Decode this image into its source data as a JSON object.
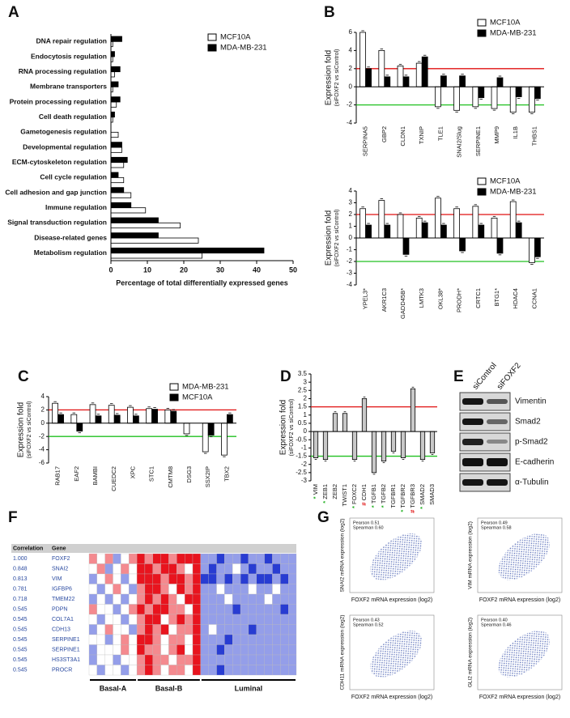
{
  "chart_data": [
    {
      "panel": "A",
      "type": "hbar",
      "categories": [
        "DNA repair regulation",
        "Endocytosis regulation",
        "RNA processing regulation",
        "Membrane transporters",
        "Protein processing regulation",
        "Cell death regulation",
        "Gametogenesis regulation",
        "Developmental regulation",
        "ECM-cytoskeleton regulation",
        "Cell cycle regulation",
        "Cell adhesion and gap junction",
        "Immune regulation",
        "Signal transduction regulation",
        "Disease-related genes",
        "Metabolism regulation"
      ],
      "series": [
        {
          "name": "MCF10A",
          "color": "#ffffff",
          "values": [
            0.5,
            0.5,
            1,
            0.5,
            1.5,
            0.5,
            2,
            3,
            3.5,
            3.5,
            5.5,
            9.5,
            19,
            24,
            25
          ]
        },
        {
          "name": "MDA-MB-231",
          "color": "#000000",
          "values": [
            3,
            1,
            2.5,
            2,
            2.5,
            1,
            0,
            3,
            4.5,
            2,
            3.5,
            5.5,
            13,
            13,
            42
          ]
        }
      ],
      "xlim": [
        0,
        50
      ],
      "xticks": [
        0,
        10,
        20,
        30,
        40,
        50
      ],
      "xlabel": "Percentage of total differentially expressed genes",
      "legend": "upper right"
    },
    {
      "panel": "B",
      "type": "bar",
      "categories": [
        "SERPINA5",
        "GBP2",
        "CLDN1",
        "TXNIP",
        "TLE1",
        "SNAI2/Slug",
        "SERPINE1",
        "MMP9",
        "IL1B",
        "THBS1"
      ],
      "series": [
        {
          "name": "MCF10A",
          "color": "#ffffff",
          "values": [
            6,
            4,
            2.3,
            2.6,
            -2.2,
            -2.6,
            -2.2,
            -2.4,
            -2.8,
            -2.8
          ]
        },
        {
          "name": "MDA-MB-231",
          "color": "#000000",
          "values": [
            2,
            1.1,
            1.1,
            3.3,
            1.2,
            1.2,
            -1.2,
            1,
            -1.1,
            -1.3
          ]
        }
      ],
      "ylim": [
        -4,
        6
      ],
      "yticks": [
        -4,
        -2,
        0,
        2,
        4,
        6
      ],
      "ylabel": "Expression fold",
      "ylabel2": "(siFOXF2 vs siControl)",
      "hlines": [
        {
          "value": 2,
          "color": "#e01010"
        },
        {
          "value": -2,
          "color": "#20c020"
        }
      ],
      "legend": "upper right"
    },
    {
      "panel": null,
      "type": "bar",
      "categories": [
        "YPEL3*",
        "AKR1C3",
        "GADD45B*",
        "LMTK3",
        "OKL38*",
        "PRODH*",
        "CRTC1",
        "BTG1*",
        "HDAC4",
        "CCNA1"
      ],
      "series": [
        {
          "name": "MCF10A",
          "color": "#ffffff",
          "values": [
            2.5,
            3.2,
            2,
            1.7,
            3.4,
            2.5,
            2.7,
            1.7,
            3.1,
            -2.1
          ]
        },
        {
          "name": "MDA-MB-231",
          "color": "#000000",
          "values": [
            1.1,
            1.1,
            -1.4,
            1.3,
            1.1,
            -1.1,
            1.1,
            -1.3,
            1.3,
            -1.6
          ]
        }
      ],
      "ylim": [
        -4,
        4
      ],
      "yticks": [
        -4,
        -3,
        -2,
        -1,
        0,
        1,
        2,
        3,
        4
      ],
      "ylabel": "Expression fold",
      "ylabel2": "(siFOXF2 vs siControl)",
      "hlines": [
        {
          "value": 2,
          "color": "#e01010"
        },
        {
          "value": -2,
          "color": "#20c020"
        }
      ],
      "legend": "upper right"
    },
    {
      "panel": "C",
      "type": "bar",
      "categories": [
        "RAB17",
        "EAF2",
        "BAMBI",
        "CUEDC2",
        "XPC",
        "STC1",
        "CMTM8",
        "DSG3",
        "SSX2IP",
        "TBX2"
      ],
      "series": [
        {
          "name": "MDA-MB-231",
          "color": "#ffffff",
          "values": [
            3,
            1.3,
            2.8,
            2.7,
            2.4,
            2.2,
            2,
            -1.6,
            -4.3,
            -4.8
          ]
        },
        {
          "name": "MCF10A",
          "color": "#000000",
          "values": [
            1.3,
            -1.2,
            1.1,
            1.2,
            1.1,
            2.1,
            1.8,
            null,
            -1.8,
            1.3
          ]
        }
      ],
      "ylim": [
        -6,
        4
      ],
      "yticks": [
        -6,
        -4,
        -2,
        0,
        2,
        4
      ],
      "ylabel": "Expression fold",
      "ylabel2": "(siFOXF2 vs siControl)",
      "hlines": [
        {
          "value": 2,
          "color": "#e01010"
        },
        {
          "value": -2,
          "color": "#20c020"
        }
      ],
      "legend": "upper right"
    },
    {
      "panel": "D",
      "type": "bar",
      "categories": [
        "VIM",
        "ZEB1",
        "ZEB2",
        "TWIST1",
        "FOXC2",
        "CDH1",
        "TGFB1",
        "TGFB2",
        "TGFBR1",
        "TGFBR2",
        "TGFBR3",
        "SMAD2",
        "SMAD3"
      ],
      "markers": [
        {
          "text": "*",
          "color": "#20b020"
        },
        {
          "text": "*",
          "color": "#20b020"
        },
        null,
        null,
        {
          "text": "*",
          "color": "#20b020"
        },
        {
          "text": "#",
          "color": "#e01010"
        },
        {
          "text": "*",
          "color": "#20b020"
        },
        {
          "text": "*",
          "color": "#20b020"
        },
        null,
        {
          "text": "*",
          "color": "#20b020"
        },
        {
          "text": "#",
          "color": "#e01010"
        },
        {
          "text": "*",
          "color": "#20b020"
        },
        null
      ],
      "series": [
        {
          "color": "#c8c8c8",
          "values": [
            -1.6,
            -1.7,
            1.1,
            1.1,
            -1.7,
            2,
            -2.5,
            -1.8,
            -1.2,
            -1.6,
            2.6,
            -1.7,
            -1.3
          ]
        }
      ],
      "ylim": [
        -3,
        3.5
      ],
      "yticks": [
        -3,
        -2.5,
        -2,
        -1.5,
        -1,
        -0.5,
        0,
        0.5,
        1,
        1.5,
        2,
        2.5,
        3,
        3.5
      ],
      "ylabel": "Expression fold",
      "ylabel2": "(siFOXF2 vs siControl)",
      "hlines": [
        {
          "value": 1.5,
          "color": "#e01010"
        },
        {
          "value": -1.5,
          "color": "#20c020"
        }
      ]
    }
  ],
  "blot": {
    "panel": "E",
    "lanes": [
      "siControl",
      "siFOXF2"
    ],
    "proteins": [
      "Vimentin",
      "Smad2",
      "p-Smad2",
      "E-cadherin",
      "α-Tubulin"
    ]
  },
  "heatmap": {
    "panel": "F",
    "header": [
      "Correlation",
      "Gene"
    ],
    "groups": [
      "Basal-A",
      "Basal-B",
      "Luminal"
    ],
    "rows": [
      {
        "correlation": "1.000",
        "gene": "FOXF2",
        "values": [
          1,
          0,
          1,
          -1,
          0,
          1,
          2,
          1,
          2,
          2,
          1,
          2,
          2,
          2,
          -1,
          -1,
          -2,
          -1,
          -1,
          -2,
          -1,
          -1,
          -2,
          -1,
          -1,
          -1
        ]
      },
      {
        "correlation": "0.848",
        "gene": "SNAI2",
        "values": [
          0,
          1,
          -1,
          0,
          1,
          0,
          2,
          2,
          1,
          2,
          2,
          1,
          0,
          2,
          -1,
          -2,
          -1,
          -1,
          0,
          -1,
          -2,
          -1,
          -1,
          -2,
          -1,
          -1
        ]
      },
      {
        "correlation": "0.813",
        "gene": "VIM",
        "values": [
          -1,
          0,
          1,
          0,
          -1,
          0,
          2,
          2,
          2,
          1,
          2,
          2,
          1,
          2,
          -2,
          -2,
          -1,
          -2,
          -1,
          -2,
          -1,
          -2,
          -2,
          -1,
          -2,
          -1
        ]
      },
      {
        "correlation": "0.781",
        "gene": "IGFBP6",
        "values": [
          0,
          -1,
          0,
          1,
          0,
          -1,
          1,
          2,
          2,
          1,
          0,
          2,
          1,
          2,
          -1,
          -1,
          0,
          -1,
          -1,
          -1,
          0,
          -1,
          -1,
          0,
          -1,
          -1
        ]
      },
      {
        "correlation": "0.718",
        "gene": "TMEM22",
        "values": [
          -1,
          0,
          -1,
          0,
          -1,
          0,
          1,
          2,
          1,
          2,
          1,
          0,
          2,
          2,
          -1,
          -1,
          -1,
          0,
          -1,
          -1,
          -1,
          -1,
          0,
          -1,
          -1,
          -1
        ]
      },
      {
        "correlation": "0.545",
        "gene": "PDPN",
        "values": [
          1,
          0,
          0,
          -1,
          0,
          1,
          2,
          1,
          2,
          2,
          1,
          1,
          0,
          2,
          -1,
          -1,
          -1,
          -1,
          -2,
          -1,
          -1,
          -1,
          -1,
          -1,
          -2,
          -1
        ]
      },
      {
        "correlation": "0.545",
        "gene": "COL7A1",
        "values": [
          0,
          -1,
          0,
          0,
          -1,
          0,
          1,
          2,
          2,
          0,
          1,
          2,
          1,
          2,
          -1,
          -1,
          -1,
          -1,
          -1,
          -1,
          -1,
          -1,
          -1,
          -1,
          -1,
          -1
        ]
      },
      {
        "correlation": "0.545",
        "gene": "CDH13",
        "values": [
          -1,
          0,
          1,
          0,
          0,
          -1,
          1,
          2,
          1,
          2,
          0,
          1,
          1,
          2,
          -1,
          0,
          -1,
          -1,
          -1,
          -1,
          -2,
          -1,
          -1,
          -1,
          -1,
          -1
        ]
      },
      {
        "correlation": "0.545",
        "gene": "SERPINE1",
        "values": [
          0,
          0,
          -1,
          0,
          1,
          0,
          2,
          2,
          1,
          0,
          1,
          1,
          0,
          2,
          -1,
          -1,
          -1,
          -2,
          -1,
          -1,
          -1,
          -1,
          -1,
          -1,
          -1,
          -1
        ]
      },
      {
        "correlation": "0.545",
        "gene": "SERPINE1",
        "values": [
          -1,
          0,
          0,
          0,
          1,
          0,
          2,
          1,
          1,
          0,
          1,
          2,
          0,
          2,
          -1,
          -1,
          -2,
          -1,
          -1,
          -1,
          -1,
          -1,
          -1,
          -1,
          -1,
          -1
        ]
      },
      {
        "correlation": "0.545",
        "gene": "HS3ST3A1",
        "values": [
          -1,
          0,
          0,
          -1,
          0,
          0,
          1,
          2,
          1,
          1,
          0,
          1,
          1,
          2,
          -1,
          -1,
          -1,
          -1,
          -1,
          -1,
          -1,
          -1,
          -1,
          -1,
          -1,
          -1
        ]
      },
      {
        "correlation": "0.545",
        "gene": "PROCR",
        "values": [
          0,
          -1,
          0,
          0,
          -1,
          0,
          1,
          2,
          1,
          0,
          1,
          1,
          0,
          2,
          -1,
          -1,
          -2,
          -1,
          -1,
          -1,
          -1,
          -1,
          -1,
          -1,
          -1,
          -1
        ]
      }
    ]
  },
  "scatter_panels": {
    "panel": "G",
    "plots": [
      {
        "ylabel": "SNAI2 mRNA expression (log2)",
        "xlabel": "FOXF2 mRNA expression (log2)",
        "stats": [
          "Pearson  0.51",
          "Spearman  0.60"
        ]
      },
      {
        "ylabel": "VIM mRNA expression (log2)",
        "xlabel": "FOXF2 mRNA expression (log2)",
        "stats": [
          "Pearson  0.49",
          "Spearman  0.58"
        ]
      },
      {
        "ylabel": "CDH11 mRNA expression (log2)",
        "xlabel": "FOXF2 mRNA expression (log2)",
        "stats": [
          "Pearson  0.43",
          "Spearman  0.52"
        ]
      },
      {
        "ylabel": "GLI2 mRNA expression (log2)",
        "xlabel": "FOXF2 mRNA expression (log2)",
        "stats": [
          "Pearson  0.40",
          "Spearman  0.46"
        ]
      }
    ]
  }
}
